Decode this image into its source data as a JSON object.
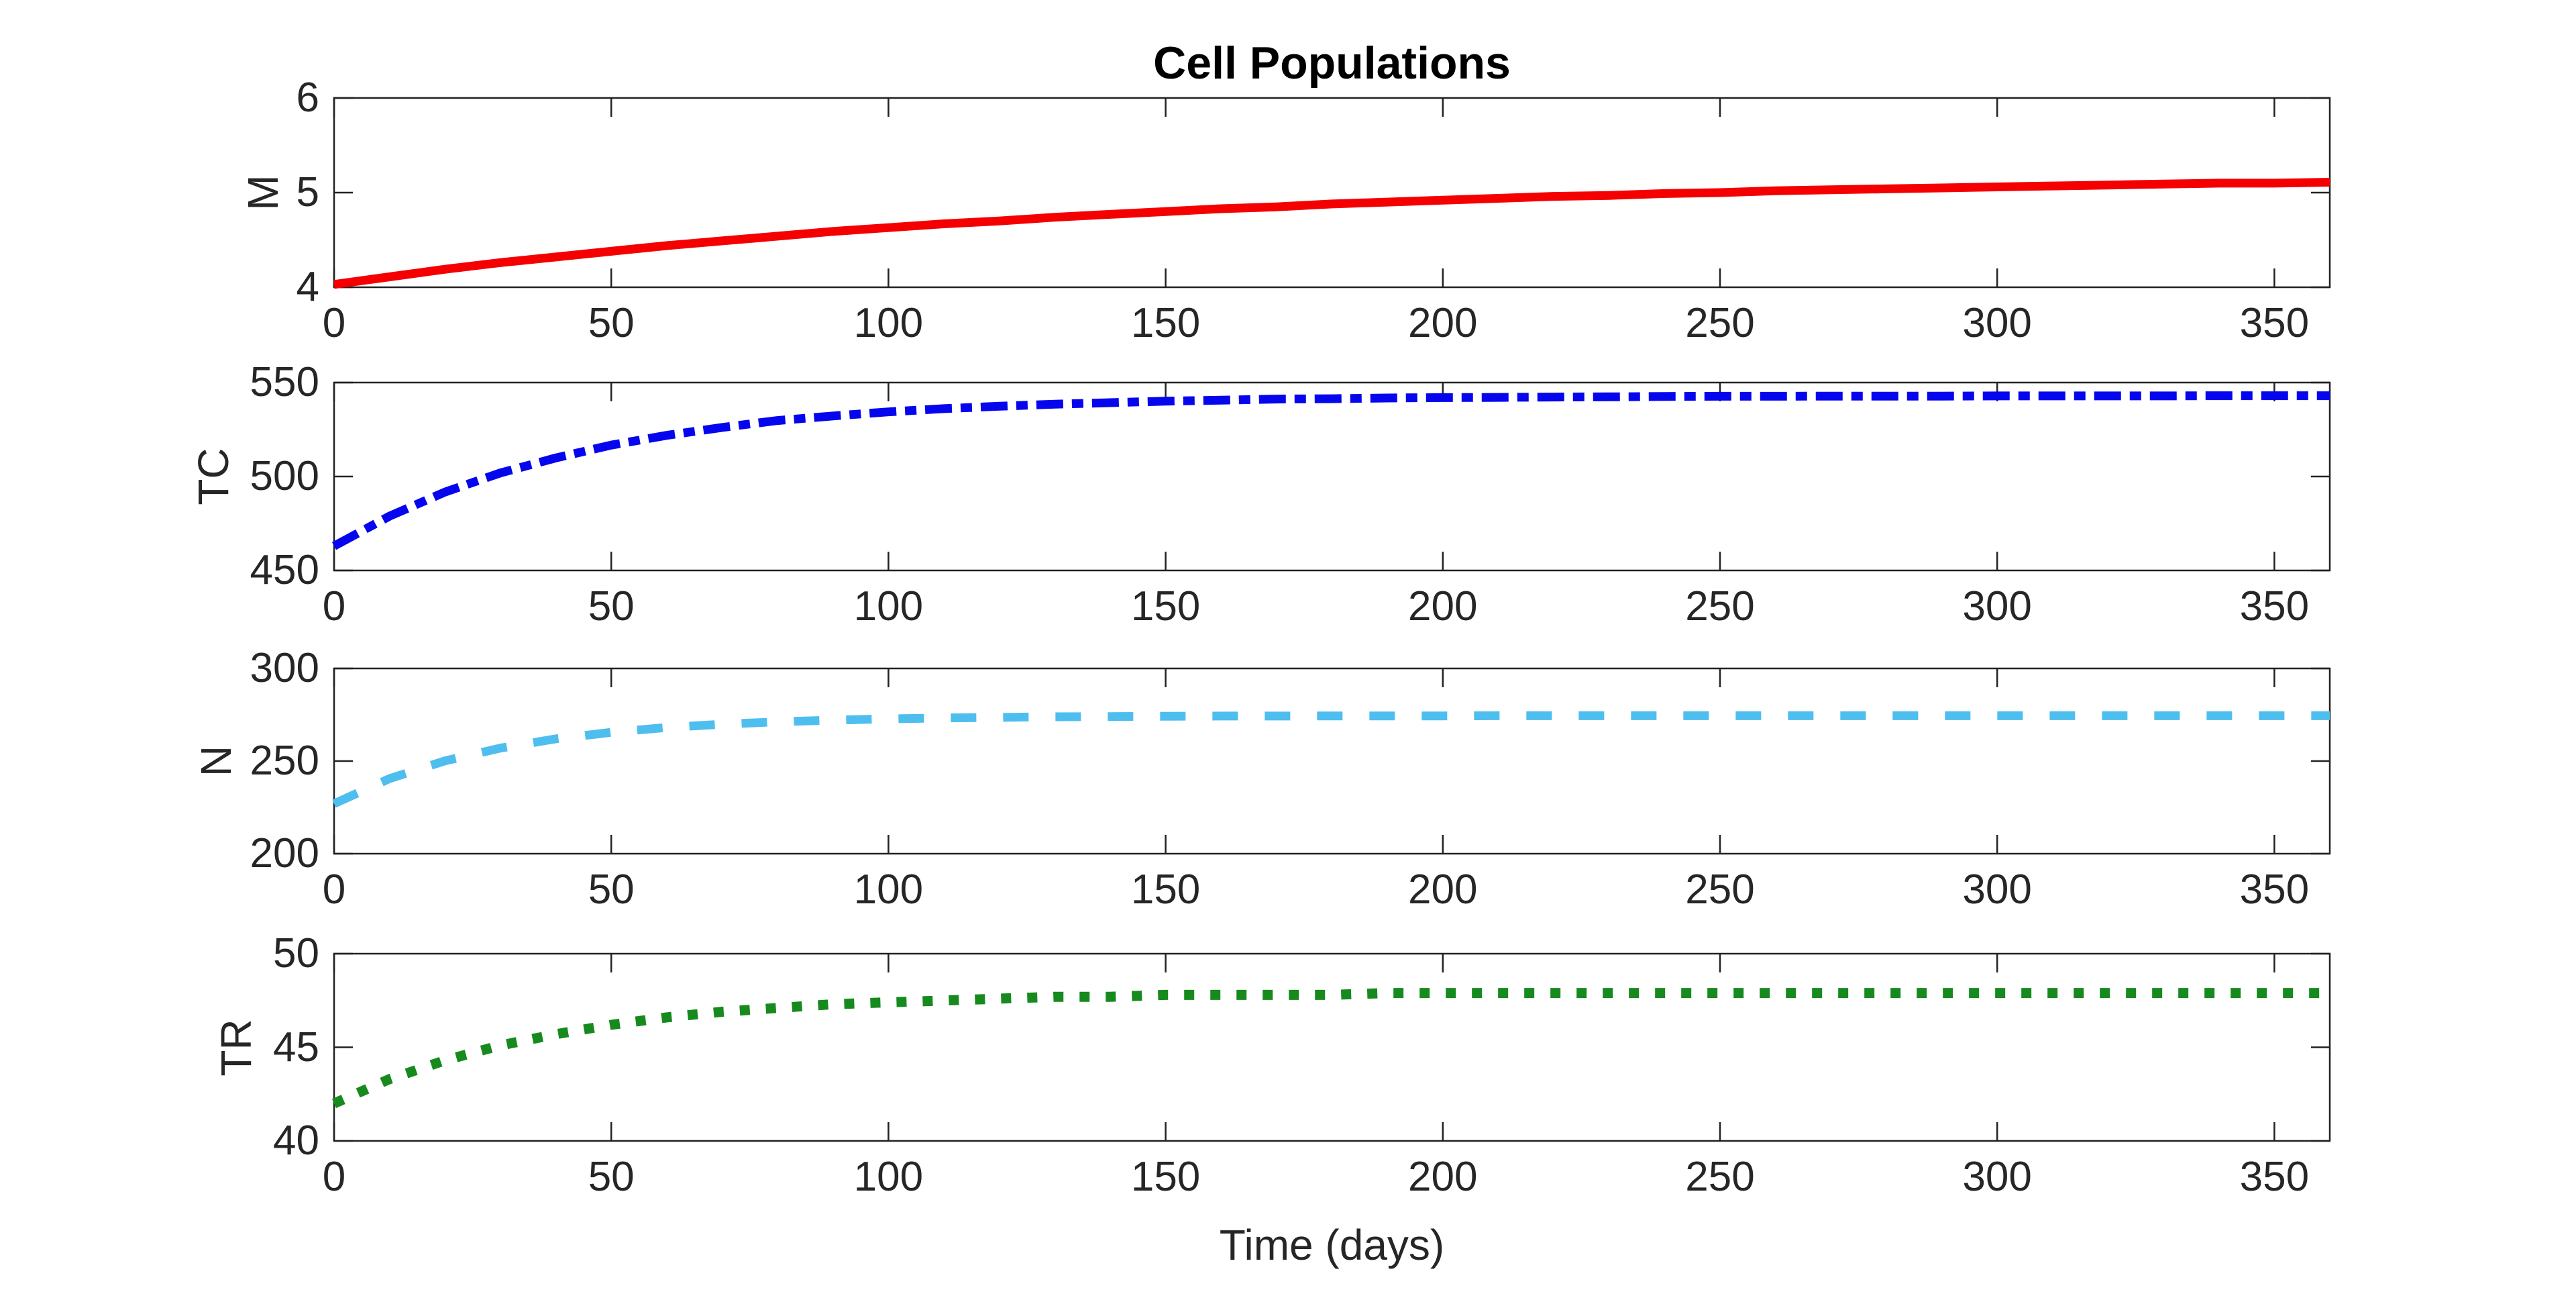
{
  "figure": {
    "background": "#ffffff"
  },
  "chart_data": {
    "type": "line",
    "title": "Cell Populations",
    "xlabel": "Time (days)",
    "xlim": [
      0,
      360
    ],
    "x_ticks": [
      0,
      50,
      100,
      150,
      200,
      250,
      300,
      350
    ],
    "grid": false,
    "legend": null,
    "axis_color": "#222222",
    "tick_label_color": "#262626",
    "x": [
      0,
      10,
      20,
      30,
      40,
      50,
      60,
      70,
      80,
      90,
      100,
      110,
      120,
      130,
      140,
      150,
      160,
      170,
      180,
      190,
      200,
      210,
      220,
      230,
      240,
      250,
      260,
      270,
      280,
      290,
      300,
      310,
      320,
      330,
      340,
      350,
      360
    ],
    "subplots": [
      {
        "ylabel": "M",
        "ylim": [
          4,
          6
        ],
        "y_ticks": [
          4,
          5,
          6
        ],
        "color": "#f50000",
        "line_style": "solid",
        "line_width": 13,
        "values": [
          4.03,
          4.11,
          4.19,
          4.26,
          4.32,
          4.38,
          4.44,
          4.49,
          4.54,
          4.59,
          4.63,
          4.67,
          4.7,
          4.74,
          4.77,
          4.8,
          4.83,
          4.85,
          4.88,
          4.9,
          4.92,
          4.94,
          4.96,
          4.97,
          4.99,
          5.0,
          5.02,
          5.03,
          5.04,
          5.05,
          5.06,
          5.07,
          5.08,
          5.09,
          5.1,
          5.1,
          5.11
        ]
      },
      {
        "ylabel": "TC",
        "ylim": [
          450,
          550
        ],
        "y_ticks": [
          450,
          500,
          550
        ],
        "color": "#0505ee",
        "line_style": "dash-dot",
        "line_width": 13,
        "values": [
          463.0,
          478.9,
          491.7,
          501.9,
          509.9,
          516.7,
          521.9,
          526.1,
          529.8,
          532.2,
          534.4,
          536.1,
          537.4,
          538.5,
          539.3,
          540.1,
          540.6,
          541.2,
          541.4,
          541.8,
          542.0,
          542.1,
          542.3,
          542.4,
          542.6,
          542.7,
          542.7,
          542.8,
          542.8,
          542.8,
          542.9,
          542.9,
          542.9,
          542.9,
          543.0,
          543.0,
          543.0
        ]
      },
      {
        "ylabel": "N",
        "ylim": [
          200,
          300
        ],
        "y_ticks": [
          200,
          250,
          300
        ],
        "color": "#4dbeee",
        "line_style": "dashed",
        "line_width": 13,
        "values": [
          227.0,
          240.5,
          250.1,
          257.0,
          262.0,
          265.5,
          268.1,
          269.9,
          271.2,
          272.1,
          272.8,
          273.3,
          273.6,
          273.9,
          274.0,
          274.2,
          274.3,
          274.3,
          274.4,
          274.4,
          274.4,
          274.5,
          274.5,
          274.5,
          274.5,
          274.5,
          274.5,
          274.5,
          274.5,
          274.5,
          274.5,
          274.5,
          274.5,
          274.5,
          274.5,
          274.5,
          274.5
        ]
      },
      {
        "ylabel": "TR",
        "ylim": [
          40,
          50
        ],
        "y_ticks": [
          40,
          45,
          50
        ],
        "color": "#178a1e",
        "line_style": "dotted",
        "line_width": 15,
        "values": [
          42.0,
          43.3,
          44.3,
          45.1,
          45.7,
          46.2,
          46.6,
          46.9,
          47.1,
          47.3,
          47.4,
          47.5,
          47.6,
          47.7,
          47.7,
          47.8,
          47.8,
          47.8,
          47.8,
          47.9,
          47.9,
          47.9,
          47.9,
          47.9,
          47.9,
          47.9,
          47.9,
          47.9,
          47.9,
          47.9,
          47.9,
          47.9,
          47.9,
          47.9,
          47.9,
          47.9,
          47.9
        ]
      }
    ]
  }
}
